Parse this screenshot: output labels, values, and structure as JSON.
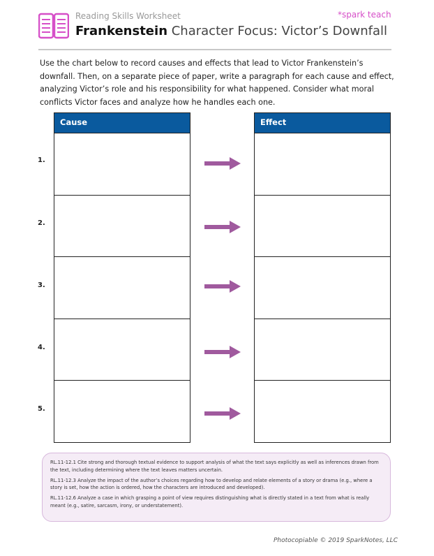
{
  "header": {
    "subtitle": "Reading Skills Worksheet",
    "title_bold": "Frankenstein",
    "title_rest": " Character Focus: Victor’s Downfall",
    "brand": "*spark teach",
    "logo_icon": "open-book-icon",
    "accent": "#d64fc8"
  },
  "intro": "Use the chart below to record causes and effects that lead to Victor Frankenstein’s downfall. Then, on a separate piece of paper, write a paragraph for each cause and effect, analyzing Victor’s role and his responsibility for what happened. Consider what moral conflicts Victor faces and analyze how he handles each one.",
  "table": {
    "cause_header": "Cause",
    "effect_header": "Effect",
    "header_color": "#0a5a9e",
    "arrow_color": "#a05a9e",
    "rows": [
      "1.",
      "2.",
      "3.",
      "4.",
      "5."
    ]
  },
  "standards": [
    "RL.11-12.1 Cite strong and thorough textual evidence to support analysis of what the text says explicitly as well as inferences drawn from the text, including determining where the text leaves matters uncertain.",
    "RL.11-12.3 Analyze the impact of the author’s choices regarding how to develop and relate elements of a story or drama (e.g., where a story is set, how the action is ordered, how the characters are introduced and developed).",
    "RL.11-12.6 Analyze a case in which grasping a point of view requires distinguishing what is directly stated in a text from what is really meant (e.g., satire, sarcasm, irony, or understatement)."
  ],
  "footer": "Photocopiable © 2019 SparkNotes, LLC"
}
